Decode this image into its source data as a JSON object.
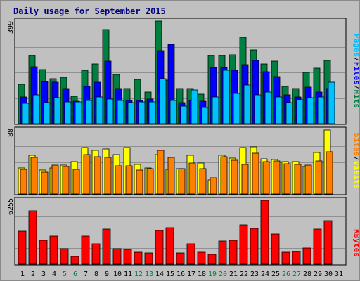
{
  "title": "Daily usage for September 2015",
  "colors": {
    "hits": "#008040",
    "files": "#0000ff",
    "pages": "#00c0ff",
    "visits": "#ffff00",
    "sites": "#ff8000",
    "kbytes": "#ff0000",
    "weekday": "#000000",
    "weekend": "#008040",
    "separator": "#000000"
  },
  "chart_data": [
    {
      "type": "bar",
      "panel": "hits-files-pages",
      "scale_label": "399",
      "ylim": [
        0,
        399
      ],
      "categories": [
        "1",
        "2",
        "3",
        "4",
        "5",
        "6",
        "7",
        "8",
        "9",
        "10",
        "11",
        "12",
        "13",
        "14",
        "15",
        "16",
        "17",
        "18",
        "19",
        "20",
        "21",
        "22",
        "23",
        "24",
        "25",
        "26",
        "27",
        "28",
        "29",
        "30",
        "31"
      ],
      "weekend_days": [
        "5",
        "6",
        "12",
        "13",
        "19",
        "20",
        "26",
        "27"
      ],
      "series": [
        {
          "name": "Hits",
          "values": [
            154,
            264,
            211,
            176,
            180,
            106,
            208,
            233,
            367,
            191,
            136,
            172,
            123,
            399,
            169,
            137,
            137,
            115,
            264,
            264,
            269,
            336,
            287,
            231,
            243,
            145,
            136,
            199,
            216,
            246,
            0
          ]
        },
        {
          "name": "Files",
          "values": [
            103,
            220,
            164,
            162,
            137,
            87,
            145,
            160,
            244,
            138,
            89,
            91,
            96,
            283,
            309,
            81,
            91,
            87,
            218,
            218,
            209,
            229,
            246,
            202,
            182,
            113,
            105,
            142,
            124,
            137,
            0
          ]
        },
        {
          "name": "Pages",
          "values": [
            80,
            113,
            82,
            101,
            84,
            84,
            89,
            103,
            96,
            91,
            81,
            86,
            84,
            176,
            90,
            67,
            131,
            63,
            103,
            208,
            117,
            150,
            111,
            123,
            103,
            81,
            92,
            102,
            105,
            160,
            0
          ]
        }
      ]
    },
    {
      "type": "bar",
      "panel": "visits-sites",
      "scale_label": "88",
      "ylim": [
        0,
        88
      ],
      "categories": [
        "1",
        "2",
        "3",
        "4",
        "5",
        "6",
        "7",
        "8",
        "9",
        "10",
        "11",
        "12",
        "13",
        "14",
        "15",
        "16",
        "17",
        "18",
        "19",
        "20",
        "21",
        "22",
        "23",
        "24",
        "25",
        "26",
        "27",
        "28",
        "29",
        "30",
        "31"
      ],
      "series": [
        {
          "name": "Visits",
          "values": [
            36,
            53,
            33,
            36,
            40,
            44,
            64,
            60,
            62,
            54,
            64,
            41,
            36,
            54,
            34,
            35,
            53,
            43,
            19,
            53,
            49,
            64,
            65,
            48,
            47,
            44,
            44,
            38,
            57,
            88,
            0
          ]
        },
        {
          "name": "Sites",
          "values": [
            34,
            50,
            30,
            40,
            38,
            34,
            54,
            51,
            50,
            39,
            39,
            33,
            35,
            60,
            50,
            35,
            43,
            35,
            22,
            51,
            46,
            41,
            56,
            44,
            45,
            42,
            41,
            40,
            45,
            58,
            0
          ]
        }
      ]
    },
    {
      "type": "bar",
      "panel": "kbytes",
      "scale_label": "6255",
      "ylim": [
        0,
        6255
      ],
      "categories": [
        "1",
        "2",
        "3",
        "4",
        "5",
        "6",
        "7",
        "8",
        "9",
        "10",
        "11",
        "12",
        "13",
        "14",
        "15",
        "16",
        "17",
        "18",
        "19",
        "20",
        "21",
        "22",
        "23",
        "24",
        "25",
        "26",
        "27",
        "28",
        "29",
        "30",
        "31"
      ],
      "series": [
        {
          "name": "KBytes",
          "values": [
            3200,
            5250,
            2360,
            2740,
            1500,
            760,
            2770,
            2000,
            3450,
            1500,
            1460,
            1170,
            1070,
            3330,
            3550,
            1100,
            1990,
            1200,
            960,
            2280,
            2360,
            3830,
            3530,
            6255,
            2990,
            1170,
            1260,
            1590,
            3450,
            4250,
            0
          ]
        }
      ]
    }
  ],
  "legend": {
    "panel1": [
      "Pages",
      "/",
      "Files",
      "/",
      "Hits"
    ],
    "panel2": [
      "Sites",
      "/",
      "Visits"
    ],
    "panel3": [
      "KBytes"
    ]
  }
}
